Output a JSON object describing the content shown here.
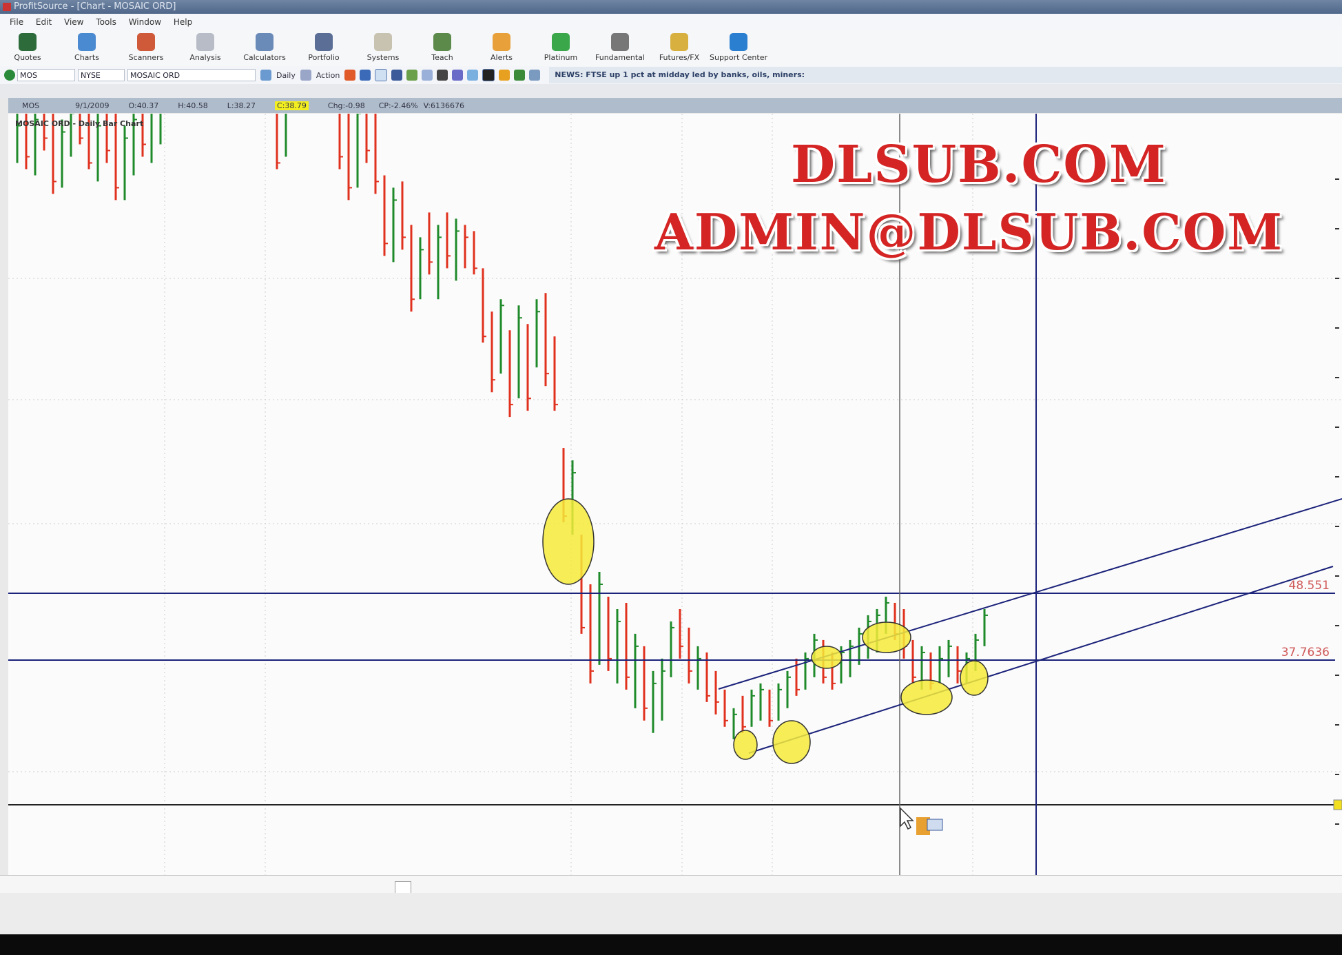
{
  "window": {
    "title": "ProfitSource - [Chart - MOSAIC ORD]"
  },
  "menu": [
    "File",
    "Edit",
    "View",
    "Tools",
    "Window",
    "Help"
  ],
  "toolbar": [
    {
      "label": "Quotes",
      "color": "#2d6b3a"
    },
    {
      "label": "Charts",
      "color": "#4a8ad0"
    },
    {
      "label": "Scanners",
      "color": "#cf5a3a"
    },
    {
      "label": "Analysis",
      "color": "#b8bcc6"
    },
    {
      "label": "Calculators",
      "color": "#6a8ab8"
    },
    {
      "label": "Portfolio",
      "color": "#5a6e96"
    },
    {
      "label": "Systems",
      "color": "#c8c2b0"
    },
    {
      "label": "Teach",
      "color": "#5b8a4a"
    },
    {
      "label": "Alerts",
      "color": "#e8a03a"
    },
    {
      "label": "Platinum",
      "color": "#3aa84a"
    },
    {
      "label": "Fundamental",
      "color": "#777777"
    },
    {
      "label": "Futures/FX",
      "color": "#d8b040"
    },
    {
      "label": "Support Center",
      "color": "#2b7fd0"
    }
  ],
  "symbol_bar": {
    "symbol": "MOS",
    "exchange": "NYSE",
    "name": "MOSAIC ORD",
    "period": "Daily",
    "action": "Action",
    "news": "NEWS: FTSE up 1 pct at midday led by banks, oils, miners:"
  },
  "info_bar": {
    "symbol": "MOS",
    "date": "9/1/2009",
    "open": "O:40.37",
    "high": "H:40.58",
    "low": "L:38.27",
    "close": "C:38.79",
    "change": "Chg:-0.98",
    "change_pct": "CP:-2.46%",
    "volume": "V:6136676"
  },
  "chart": {
    "title": "MOSAIC ORD - Daily Bar Chart",
    "up_color": "#1f8a2a",
    "down_color": "#e0301e",
    "line_color": "#1c237a",
    "highlight_color": "#f5ea3a",
    "levels": [
      {
        "value": 48.551,
        "label": "48.551"
      },
      {
        "value": 37.7636,
        "label": "37.7636"
      }
    ],
    "bars_hlc": [
      [
        128,
        118,
        124
      ],
      [
        127,
        117,
        119
      ],
      [
        126,
        116,
        125
      ],
      [
        128,
        120,
        122
      ],
      [
        127,
        113,
        115
      ],
      [
        125,
        114,
        123
      ],
      [
        128,
        119,
        126
      ],
      [
        129,
        121,
        122
      ],
      [
        127,
        117,
        118
      ],
      [
        126,
        115,
        124
      ],
      [
        128,
        118,
        120
      ],
      [
        127,
        112,
        114
      ],
      [
        124,
        112,
        122
      ],
      [
        126,
        116,
        125
      ],
      [
        128,
        119,
        121
      ],
      [
        129,
        118,
        127
      ],
      [
        130,
        121,
        128
      ],
      null,
      null,
      null,
      null,
      null,
      null,
      null,
      null,
      null,
      null,
      null,
      null,
      [
        130,
        117,
        118
      ],
      [
        130,
        119,
        128
      ],
      null,
      null,
      null,
      null,
      null,
      [
        130,
        117,
        119
      ],
      [
        129,
        112,
        114
      ],
      [
        128,
        114,
        126
      ],
      [
        130,
        118,
        120
      ],
      [
        129,
        113,
        115
      ],
      [
        116,
        103,
        105
      ],
      [
        114,
        102,
        112
      ],
      [
        115,
        104,
        106
      ],
      [
        108,
        94,
        96
      ],
      [
        106,
        96,
        104
      ],
      [
        110,
        100,
        102
      ],
      [
        108,
        96,
        106
      ],
      [
        110,
        101,
        103
      ],
      [
        109,
        99,
        107
      ],
      [
        108,
        101,
        106
      ],
      [
        107,
        100,
        101
      ],
      [
        101,
        89,
        90
      ],
      [
        94,
        81,
        83
      ],
      [
        96,
        84,
        95
      ],
      [
        91,
        77,
        79
      ],
      [
        95,
        80,
        93
      ],
      [
        92,
        78,
        80
      ],
      [
        96,
        85,
        94
      ],
      [
        97,
        82,
        84
      ],
      [
        90,
        78,
        79
      ],
      [
        72,
        60,
        61
      ],
      [
        70,
        58,
        68
      ],
      [
        58,
        42,
        43
      ],
      [
        50,
        34,
        36
      ],
      [
        52,
        37,
        50
      ],
      [
        48,
        36,
        38
      ],
      [
        46,
        34,
        44
      ],
      [
        47,
        33,
        35
      ],
      [
        42,
        30,
        40
      ],
      [
        40,
        28,
        30
      ],
      [
        36,
        26,
        34
      ],
      [
        38,
        28,
        36
      ],
      [
        44,
        35,
        43
      ],
      [
        46,
        38,
        40
      ],
      [
        43,
        34,
        36
      ],
      [
        40,
        33,
        38
      ],
      [
        39,
        31,
        32
      ],
      [
        36,
        29,
        31
      ],
      [
        33,
        27,
        28
      ],
      [
        30,
        25,
        29
      ],
      [
        32,
        26,
        27
      ],
      [
        33,
        27,
        32
      ],
      [
        34,
        28,
        33
      ],
      [
        33,
        27,
        28
      ],
      [
        34,
        28,
        33
      ],
      [
        36,
        30,
        35
      ],
      [
        38,
        32,
        33
      ],
      [
        39,
        33,
        38
      ],
      [
        42,
        35,
        41
      ],
      [
        41,
        34,
        35
      ],
      [
        39,
        33,
        34
      ],
      [
        40,
        34,
        39
      ],
      [
        41,
        35,
        40
      ],
      [
        43,
        37,
        42
      ],
      [
        45,
        38,
        44
      ],
      [
        46,
        39,
        45
      ],
      [
        48,
        42,
        47
      ],
      [
        47,
        41,
        42
      ],
      [
        46,
        38,
        40
      ],
      [
        41,
        34,
        35
      ],
      [
        40,
        33,
        39
      ],
      [
        39,
        33,
        34
      ],
      [
        40,
        34,
        38
      ],
      [
        41,
        35,
        40
      ],
      [
        40,
        34,
        36
      ],
      [
        39,
        34,
        38
      ],
      [
        42,
        36,
        41
      ],
      [
        46,
        40,
        45
      ]
    ]
  },
  "watermark": {
    "line1": "DLSUB.COM",
    "line2": "ADMIN@DLSUB.COM"
  }
}
